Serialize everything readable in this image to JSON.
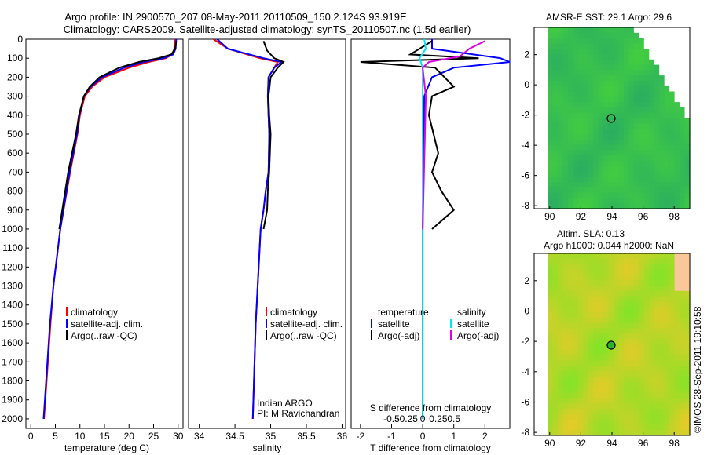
{
  "title": {
    "line1": "Argo profile: IN 2900570_207 08-May-2011 20110509_150 2.124S 93.919E",
    "line2": "Climatology: CARS2009. Satellite-adjusted climatology: synTS_20110507.nc (1.5d earlier)"
  },
  "panels": {
    "temperature": {
      "xlabel": "temperature (deg C)",
      "xticks": [
        "0",
        "5",
        "10",
        "15",
        "20",
        "25",
        "30"
      ],
      "yticks": [
        "0",
        "100",
        "200",
        "300",
        "400",
        "500",
        "600",
        "700",
        "800",
        "900",
        "1000",
        "1100",
        "1200",
        "1300",
        "1400",
        "1500",
        "1600",
        "1700",
        "1800",
        "1900",
        "2000"
      ],
      "legend": [
        "climatology",
        "satellite-adj. clim.",
        "Argo(..raw -QC)"
      ]
    },
    "salinity": {
      "xlabel": "salinity",
      "xticks": [
        "34",
        "34.5",
        "35",
        "35.5",
        "36"
      ],
      "legend": [
        "climatology",
        "satellite-adj. clim.",
        "Argo(..raw -QC)"
      ],
      "note1": "Indian ARGO",
      "note2": "PI: M Ravichandran"
    },
    "difference": {
      "xlabel": "T difference from climatology",
      "xlabel_top": "S difference from climatology",
      "xticks_T": [
        "-2",
        "-1",
        "0",
        "1",
        "2"
      ],
      "xticks_S": [
        "-0.5",
        "-0.25",
        "0",
        "0.25",
        "0.5"
      ],
      "legend_t_title": "temperature",
      "legend_s_title": "salinity",
      "legend_t": [
        "satellite",
        "Argo(-adj)"
      ],
      "legend_s": [
        "satellite",
        "Argo(-adj)"
      ]
    },
    "sst_map": {
      "title": "AMSR-E SST: 29.1  Argo: 29.6",
      "xticks": [
        "90",
        "92",
        "94",
        "96",
        "98"
      ],
      "yticks": [
        "2",
        "0",
        "-2",
        "-4",
        "-6",
        "-8"
      ]
    },
    "sla_map": {
      "title1": "Altim. SLA: 0.13",
      "title2": "Argo h1000: 0.044  h2000: NaN",
      "xticks": [
        "90",
        "92",
        "94",
        "96",
        "98"
      ],
      "yticks": [
        "2",
        "0",
        "-2",
        "-4",
        "-6",
        "-8"
      ]
    }
  },
  "footer": "©IMOS 28-Sep-2011 19:10:58",
  "colors": {
    "climatology": "#ff0000",
    "satellite": "#0000ff",
    "argo": "#000000",
    "sat_salinity": "#00e5ee",
    "argo_salinity": "#e000e0"
  },
  "chart_data": [
    {
      "type": "line",
      "panel": "temperature",
      "xlabel": "temperature (deg C)",
      "xlim": [
        -1,
        31
      ],
      "ylim": [
        2050,
        0
      ],
      "series": [
        {
          "name": "climatology",
          "depth": [
            0,
            50,
            80,
            100,
            120,
            150,
            200,
            250,
            300,
            400,
            500,
            700,
            1000,
            1300,
            1500,
            2000
          ],
          "values": [
            29.3,
            29.2,
            28.8,
            27.5,
            24,
            20,
            15,
            12.5,
            11,
            10,
            9.5,
            8,
            6,
            4.6,
            4,
            2.7
          ]
        },
        {
          "name": "satellite-adj. clim.",
          "depth": [
            0,
            50,
            80,
            100,
            120,
            150,
            200,
            250,
            300,
            400,
            500,
            700,
            1000,
            1300,
            1500,
            2000
          ],
          "values": [
            29.6,
            29.5,
            29,
            27,
            23,
            19,
            14.5,
            12.2,
            10.8,
            9.9,
            9.4,
            7.9,
            6,
            4.6,
            3.9,
            2.6
          ]
        },
        {
          "name": "Argo(..raw -QC)",
          "depth": [
            10,
            50,
            80,
            100,
            120,
            150,
            200,
            250,
            300,
            400,
            500,
            700,
            1000
          ],
          "values": [
            29.6,
            29.4,
            28.6,
            26,
            22,
            18,
            14,
            12,
            10.8,
            9.8,
            9.2,
            7.6,
            5.8
          ]
        }
      ]
    },
    {
      "type": "line",
      "panel": "salinity",
      "xlabel": "salinity",
      "xlim": [
        33.85,
        36.05
      ],
      "ylim": [
        2050,
        0
      ],
      "series": [
        {
          "name": "climatology",
          "depth": [
            0,
            50,
            100,
            120,
            150,
            200,
            300,
            400,
            500,
            700,
            800,
            900,
            1000,
            1500,
            2000
          ],
          "values": [
            34.2,
            34.4,
            34.85,
            35.1,
            35.05,
            34.97,
            34.96,
            34.97,
            34.98,
            34.97,
            34.93,
            34.9,
            34.86,
            34.79,
            34.75
          ]
        },
        {
          "name": "satellite-adj. clim.",
          "depth": [
            0,
            50,
            100,
            120,
            150,
            200,
            300,
            400,
            500,
            700,
            800,
            900,
            1000,
            1500,
            2000
          ],
          "values": [
            34.25,
            34.4,
            34.9,
            35.15,
            35.05,
            34.97,
            34.96,
            34.97,
            34.98,
            34.97,
            34.93,
            34.9,
            34.86,
            34.79,
            34.75
          ]
        },
        {
          "name": "Argo(..raw -QC)",
          "depth": [
            10,
            60,
            100,
            120,
            150,
            200,
            300,
            400,
            500,
            700,
            800,
            900,
            1000
          ],
          "values": [
            34.9,
            34.95,
            35.05,
            35.18,
            35.1,
            35,
            34.97,
            34.98,
            35,
            34.98,
            34.96,
            34.95,
            34.9
          ]
        }
      ]
    },
    {
      "type": "line",
      "panel": "difference",
      "xlabel": "T difference from climatology",
      "xlim": [
        -2.3,
        2.8
      ],
      "ylim": [
        2050,
        0
      ],
      "series": [
        {
          "name": "temperature satellite",
          "depth": [
            0,
            50,
            100,
            120,
            150,
            200,
            300,
            1000,
            2000
          ],
          "values": [
            0.3,
            0.3,
            2.5,
            2.8,
            1,
            0.3,
            0.05,
            0,
            0
          ]
        },
        {
          "name": "temperature Argo(-adj)",
          "depth": [
            10,
            80,
            100,
            120,
            150,
            250,
            300,
            400,
            600,
            700,
            800,
            900,
            1000
          ],
          "values": [
            0.3,
            -0.4,
            1.8,
            -2,
            0.4,
            1,
            0.3,
            0.2,
            0.5,
            0.3,
            0.6,
            1,
            0.3
          ]
        },
        {
          "name": "salinity satellite",
          "depth": [
            0,
            50,
            100,
            150,
            200,
            1000,
            2000
          ],
          "values": [
            0.05,
            0.1,
            -0.1,
            0,
            0,
            0,
            0
          ]
        },
        {
          "name": "salinity Argo(-adj)",
          "depth": [
            10,
            50,
            90,
            120,
            150,
            300,
            1000
          ],
          "values": [
            2,
            1.5,
            1.2,
            0.2,
            0,
            0.1,
            0
          ]
        }
      ]
    }
  ]
}
